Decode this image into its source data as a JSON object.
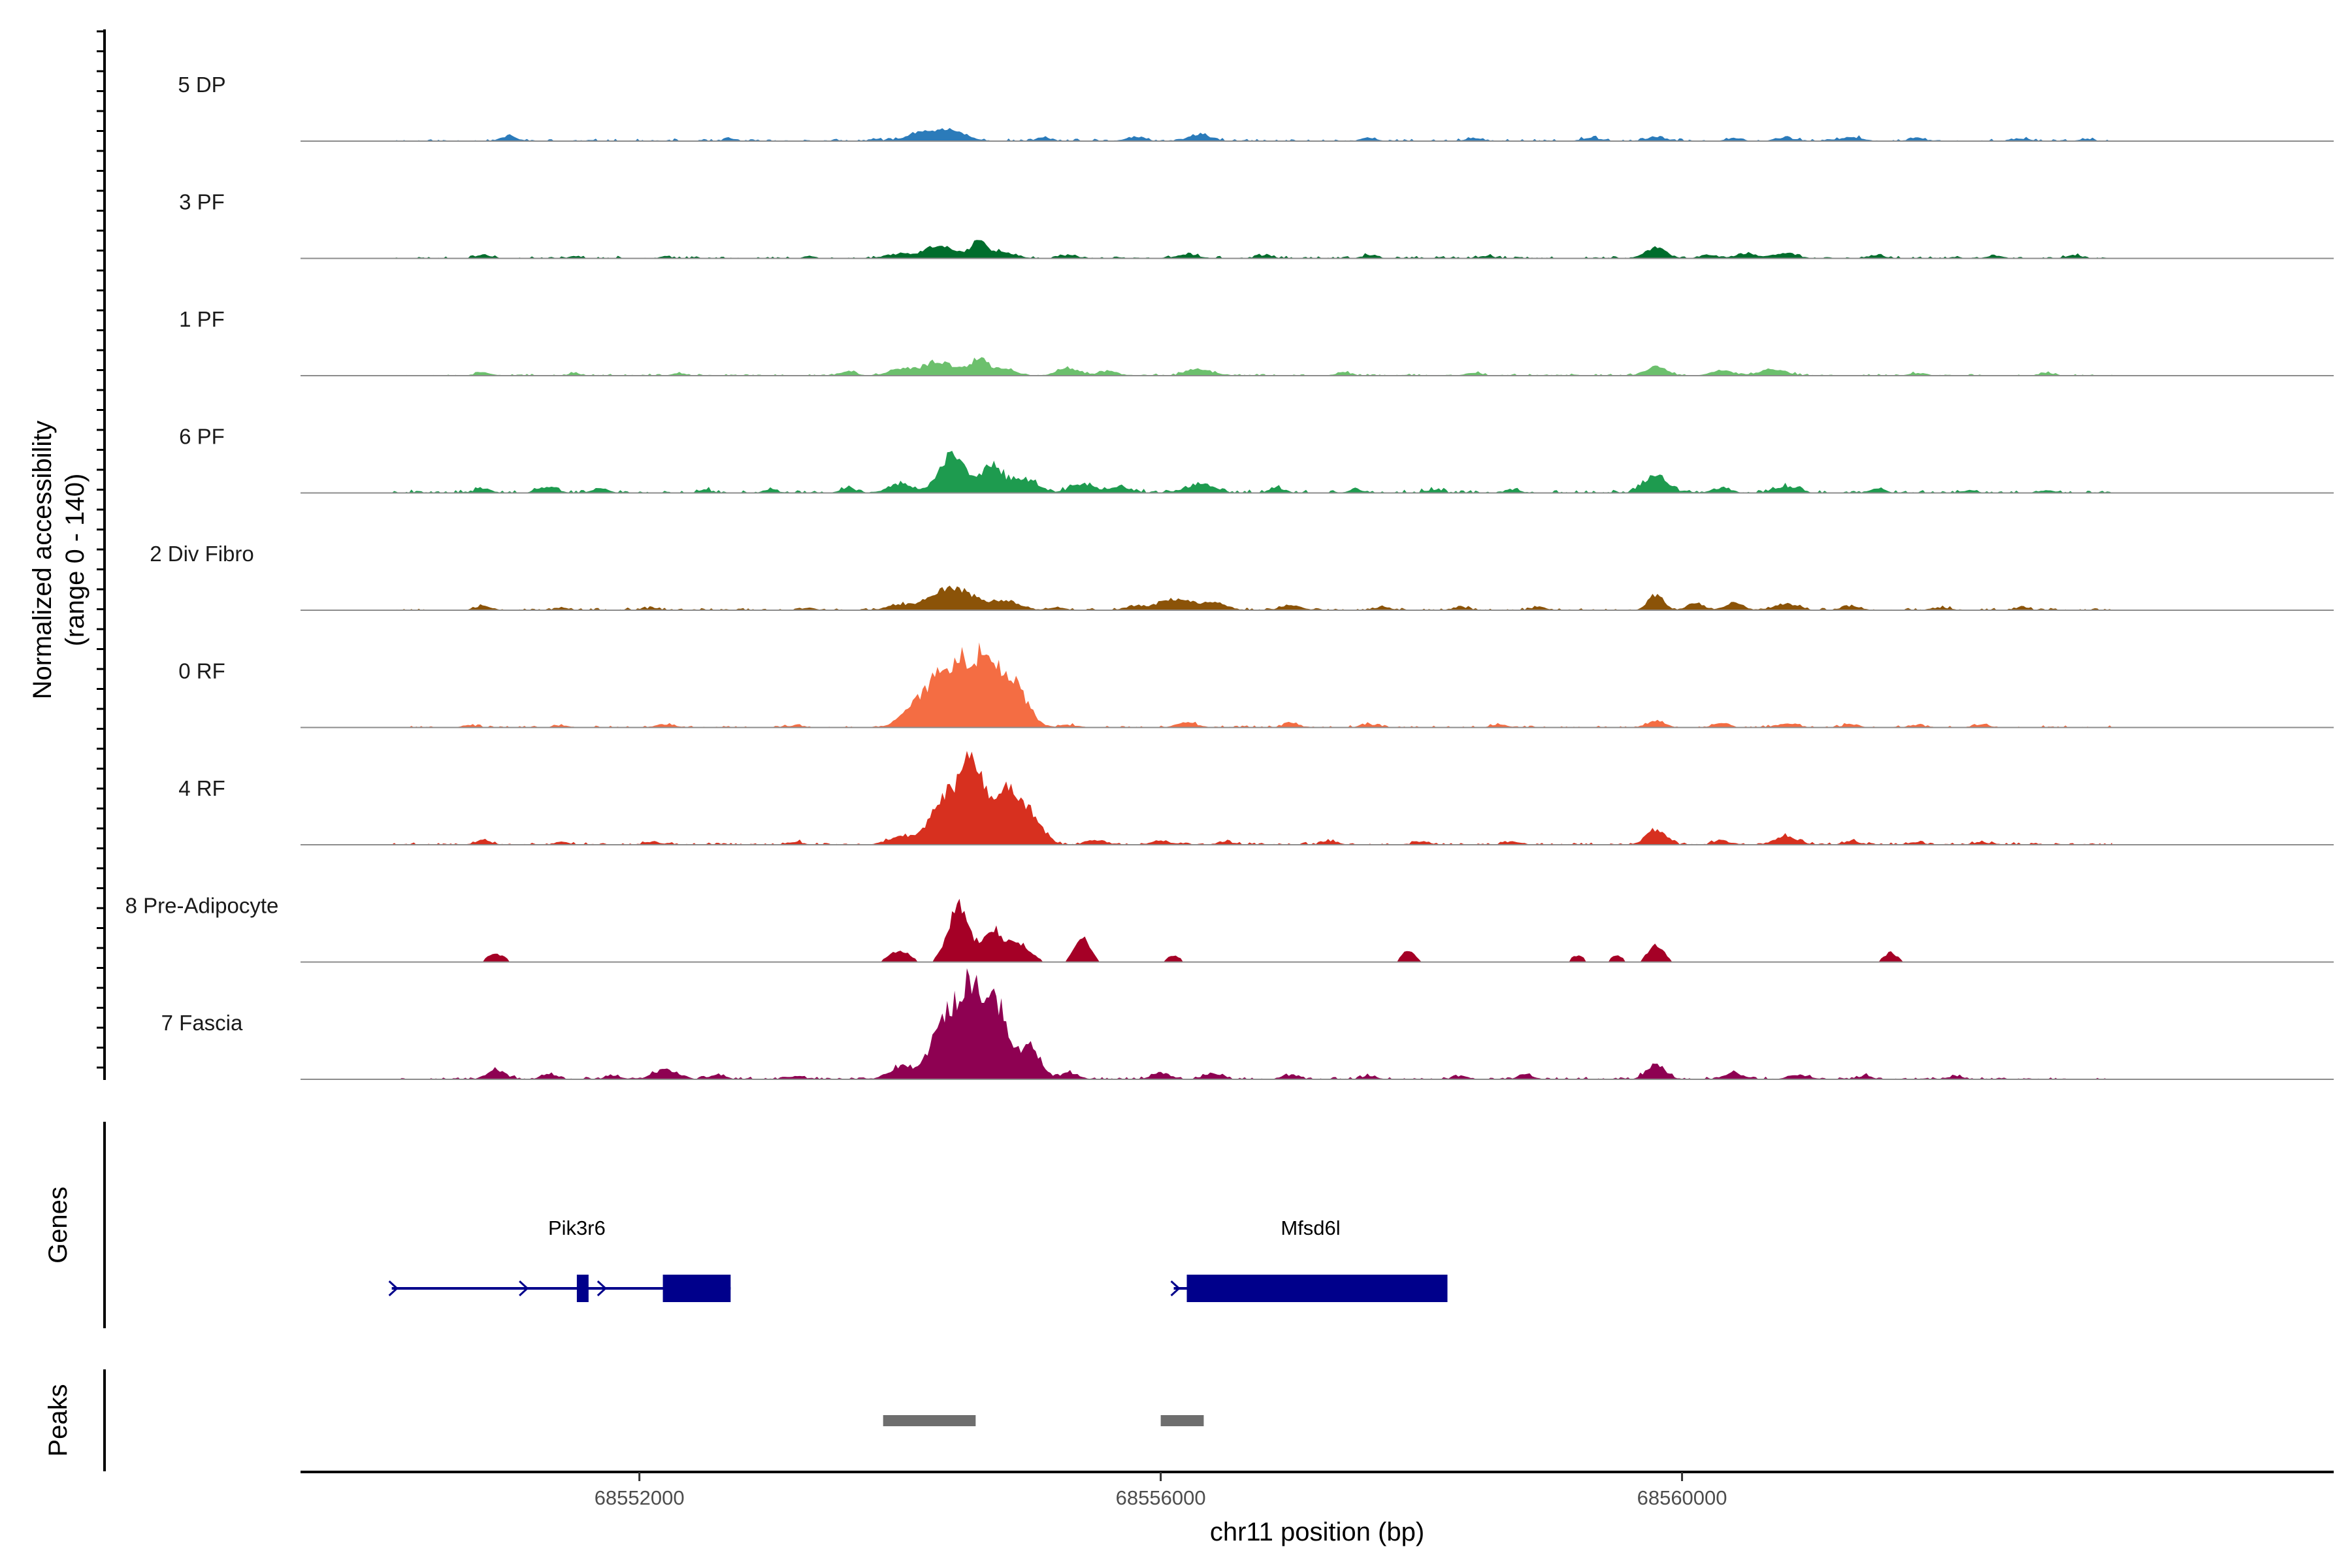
{
  "chart_data": {
    "type": "area",
    "title": "",
    "ylabel_line1": "Normalized accessibility",
    "ylabel_line2": "(range 0 - 140)",
    "y_range": [
      0,
      140
    ],
    "xlabel": "chr11 position (bp)",
    "xlim": [
      68549400,
      68565000
    ],
    "x_ticks": [
      68552000,
      68556000,
      68560000
    ],
    "x_tick_labels": [
      "68552000",
      "68556000",
      "68560000"
    ],
    "track_region": [
      68550100,
      68563300
    ],
    "series": [
      {
        "name": "5 DP",
        "color": "#2B7BBA",
        "noise": 3,
        "seed": 11,
        "sparse": false,
        "peaks": [
          [
            68551000,
            6,
            60
          ],
          [
            68552700,
            3,
            40
          ],
          [
            68553800,
            3,
            40
          ],
          [
            68554100,
            4,
            100
          ],
          [
            68554250,
            13,
            120
          ],
          [
            68554450,
            8,
            90
          ],
          [
            68555100,
            4,
            60
          ],
          [
            68555800,
            5,
            70
          ],
          [
            68556300,
            9,
            80
          ],
          [
            68557600,
            4,
            60
          ],
          [
            68558400,
            4,
            60
          ],
          [
            68559300,
            4,
            70
          ],
          [
            68559800,
            5,
            80
          ],
          [
            68560400,
            4,
            60
          ],
          [
            68560800,
            4,
            80
          ],
          [
            68561300,
            5,
            80
          ],
          [
            68561800,
            4,
            60
          ],
          [
            68562600,
            3,
            60
          ],
          [
            68563100,
            3,
            50
          ]
        ]
      },
      {
        "name": "3 PF",
        "color": "#006D2C",
        "noise": 3,
        "seed": 23,
        "sparse": false,
        "peaks": [
          [
            68550800,
            4,
            60
          ],
          [
            68551500,
            3,
            40
          ],
          [
            68552200,
            3,
            40
          ],
          [
            68553300,
            3,
            40
          ],
          [
            68554000,
            6,
            100
          ],
          [
            68554300,
            17,
            100
          ],
          [
            68554600,
            20,
            70
          ],
          [
            68554800,
            8,
            90
          ],
          [
            68555300,
            4,
            60
          ],
          [
            68556200,
            5,
            80
          ],
          [
            68556800,
            4,
            60
          ],
          [
            68557600,
            4,
            60
          ],
          [
            68558500,
            3,
            60
          ],
          [
            68559800,
            13,
            80
          ],
          [
            68560200,
            5,
            60
          ],
          [
            68560500,
            6,
            80
          ],
          [
            68560800,
            7,
            80
          ],
          [
            68561500,
            4,
            60
          ],
          [
            68562400,
            3,
            60
          ],
          [
            68563000,
            4,
            60
          ]
        ]
      },
      {
        "name": "1 PF",
        "color": "#6CC06D",
        "noise": 2.5,
        "seed": 37,
        "sparse": false,
        "peaks": [
          [
            68550800,
            4,
            60
          ],
          [
            68551500,
            3,
            50
          ],
          [
            68552300,
            3,
            50
          ],
          [
            68553600,
            5,
            60
          ],
          [
            68554000,
            8,
            90
          ],
          [
            68554300,
            18,
            120
          ],
          [
            68554600,
            20,
            70
          ],
          [
            68554800,
            9,
            90
          ],
          [
            68555300,
            9,
            90
          ],
          [
            68555600,
            6,
            70
          ],
          [
            68556300,
            8,
            100
          ],
          [
            68557400,
            4,
            60
          ],
          [
            68558400,
            4,
            60
          ],
          [
            68559800,
            12,
            80
          ],
          [
            68560300,
            7,
            80
          ],
          [
            68560700,
            8,
            100
          ],
          [
            68561800,
            3,
            60
          ],
          [
            68562800,
            3,
            60
          ]
        ]
      },
      {
        "name": "6 PF",
        "color": "#1E9B4F",
        "noise": 4,
        "seed": 41,
        "sparse": false,
        "peaks": [
          [
            68550800,
            6,
            60
          ],
          [
            68551300,
            8,
            70
          ],
          [
            68551700,
            6,
            60
          ],
          [
            68552500,
            4,
            50
          ],
          [
            68553000,
            4,
            50
          ],
          [
            68553600,
            6,
            60
          ],
          [
            68554000,
            12,
            90
          ],
          [
            68554400,
            48,
            100
          ],
          [
            68554700,
            35,
            80
          ],
          [
            68554950,
            18,
            100
          ],
          [
            68555400,
            12,
            90
          ],
          [
            68555700,
            7,
            80
          ],
          [
            68556300,
            12,
            100
          ],
          [
            68556900,
            5,
            60
          ],
          [
            68557500,
            4,
            60
          ],
          [
            68558100,
            4,
            60
          ],
          [
            68558700,
            4,
            60
          ],
          [
            68559800,
            22,
            90
          ],
          [
            68560300,
            6,
            70
          ],
          [
            68560800,
            8,
            90
          ],
          [
            68561500,
            5,
            60
          ],
          [
            68562200,
            3,
            60
          ],
          [
            68562800,
            3,
            60
          ]
        ]
      },
      {
        "name": "2 Div Fibro",
        "color": "#8B5308",
        "noise": 3,
        "seed": 53,
        "sparse": false,
        "peaks": [
          [
            68550800,
            5,
            60
          ],
          [
            68551400,
            3,
            50
          ],
          [
            68552100,
            3,
            50
          ],
          [
            68553300,
            3,
            50
          ],
          [
            68554000,
            6,
            100
          ],
          [
            68554400,
            30,
            150
          ],
          [
            68554800,
            12,
            110
          ],
          [
            68555200,
            4,
            60
          ],
          [
            68555800,
            5,
            80
          ],
          [
            68556100,
            14,
            120
          ],
          [
            68556400,
            10,
            100
          ],
          [
            68557000,
            6,
            80
          ],
          [
            68557700,
            4,
            60
          ],
          [
            68558300,
            4,
            60
          ],
          [
            68558900,
            4,
            60
          ],
          [
            68559800,
            20,
            60
          ],
          [
            68560100,
            9,
            60
          ],
          [
            68560400,
            9,
            70
          ],
          [
            68560800,
            8,
            90
          ],
          [
            68561300,
            5,
            70
          ],
          [
            68562000,
            3,
            60
          ],
          [
            68562600,
            3,
            60
          ]
        ]
      },
      {
        "name": "0 RF",
        "color": "#F46D43",
        "noise": 2.5,
        "seed": 67,
        "sparse": false,
        "peaks": [
          [
            68550700,
            3,
            60
          ],
          [
            68551400,
            3,
            50
          ],
          [
            68552200,
            4,
            60
          ],
          [
            68553200,
            3,
            50
          ],
          [
            68554100,
            8,
            100
          ],
          [
            68554400,
            80,
            190
          ],
          [
            68554700,
            60,
            140
          ],
          [
            68554900,
            30,
            100
          ],
          [
            68555300,
            3,
            60
          ],
          [
            68556200,
            6,
            80
          ],
          [
            68557000,
            5,
            60
          ],
          [
            68557600,
            4,
            60
          ],
          [
            68558600,
            4,
            60
          ],
          [
            68559800,
            8,
            70
          ],
          [
            68560300,
            6,
            60
          ],
          [
            68560800,
            5,
            80
          ],
          [
            68561300,
            4,
            60
          ],
          [
            68561800,
            3,
            60
          ],
          [
            68562300,
            4,
            60
          ]
        ]
      },
      {
        "name": "4 RF",
        "color": "#D7301F",
        "noise": 3,
        "seed": 79,
        "sparse": false,
        "peaks": [
          [
            68550800,
            6,
            60
          ],
          [
            68551400,
            4,
            50
          ],
          [
            68552100,
            4,
            60
          ],
          [
            68553200,
            4,
            50
          ],
          [
            68554000,
            10,
            100
          ],
          [
            68554350,
            55,
            120
          ],
          [
            68554550,
            95,
            90
          ],
          [
            68554800,
            70,
            90
          ],
          [
            68555000,
            40,
            90
          ],
          [
            68555500,
            6,
            70
          ],
          [
            68556000,
            5,
            70
          ],
          [
            68556500,
            4,
            60
          ],
          [
            68557300,
            5,
            60
          ],
          [
            68558000,
            4,
            60
          ],
          [
            68558700,
            4,
            60
          ],
          [
            68559800,
            20,
            70
          ],
          [
            68560300,
            5,
            60
          ],
          [
            68560800,
            10,
            90
          ],
          [
            68561300,
            5,
            60
          ],
          [
            68561800,
            3,
            60
          ],
          [
            68562300,
            3,
            60
          ]
        ]
      },
      {
        "name": "8 Pre-Adipocyte",
        "color": "#A50026",
        "noise": 0,
        "seed": 83,
        "sparse": true,
        "peaks": [
          [
            68550900,
            10,
            70
          ],
          [
            68551400,
            3,
            40
          ],
          [
            68552200,
            3,
            40
          ],
          [
            68553200,
            3,
            40
          ],
          [
            68554000,
            14,
            80
          ],
          [
            68554450,
            70,
            80
          ],
          [
            68554700,
            42,
            70
          ],
          [
            68554900,
            25,
            90
          ],
          [
            68555400,
            30,
            60
          ],
          [
            68556100,
            8,
            50
          ],
          [
            68556500,
            3,
            40
          ],
          [
            68557200,
            3,
            40
          ],
          [
            68557900,
            14,
            50
          ],
          [
            68558600,
            3,
            40
          ],
          [
            68559200,
            8,
            50
          ],
          [
            68559500,
            8,
            50
          ],
          [
            68559800,
            22,
            60
          ],
          [
            68561600,
            12,
            50
          ],
          [
            68562500,
            3,
            40
          ]
        ]
      },
      {
        "name": "7 Fascia",
        "color": "#8E0152",
        "noise": 3,
        "seed": 97,
        "sparse": false,
        "peaks": [
          [
            68550900,
            12,
            70
          ],
          [
            68551300,
            6,
            60
          ],
          [
            68551800,
            4,
            60
          ],
          [
            68552200,
            12,
            90
          ],
          [
            68552600,
            6,
            60
          ],
          [
            68553200,
            4,
            60
          ],
          [
            68554000,
            15,
            80
          ],
          [
            68554350,
            70,
            120
          ],
          [
            68554550,
            100,
            100
          ],
          [
            68554750,
            85,
            90
          ],
          [
            68555000,
            40,
            80
          ],
          [
            68555300,
            8,
            70
          ],
          [
            68556000,
            8,
            70
          ],
          [
            68556400,
            8,
            70
          ],
          [
            68557000,
            5,
            60
          ],
          [
            68557600,
            4,
            60
          ],
          [
            68558300,
            4,
            60
          ],
          [
            68558800,
            5,
            60
          ],
          [
            68559800,
            20,
            70
          ],
          [
            68560400,
            8,
            70
          ],
          [
            68560900,
            5,
            80
          ],
          [
            68561400,
            4,
            60
          ],
          [
            68562100,
            4,
            60
          ]
        ]
      }
    ],
    "genes": [
      {
        "name": "Pik3r6",
        "strand": "+",
        "line": [
          68550100,
          68552700
        ],
        "arrows": [
          68550100,
          68551100,
          68551700
        ],
        "exons": [
          [
            68551520,
            68551610
          ],
          [
            68552180,
            68552700
          ]
        ]
      },
      {
        "name": "Mfsd6l",
        "strand": "+",
        "line": [
          68556100,
          68558200
        ],
        "arrows": [
          68556100
        ],
        "exons": [
          [
            68556200,
            68558200
          ]
        ]
      }
    ],
    "peaks_track": {
      "label": "Peaks",
      "regions": [
        [
          68553870,
          68554580
        ],
        [
          68556000,
          68556330
        ]
      ]
    },
    "genes_track_label": "Genes"
  }
}
